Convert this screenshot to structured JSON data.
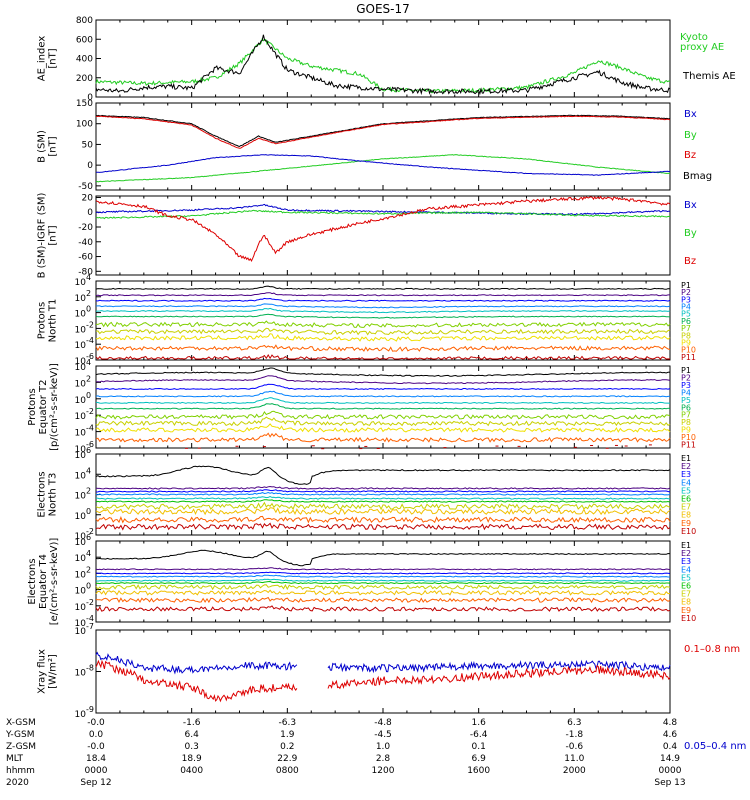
{
  "title": "GOES-17",
  "colors": {
    "black": "#000000",
    "green": "#22cc22",
    "blue": "#0000cc",
    "red": "#dd0000",
    "p_levels": [
      "#000000",
      "#4b0082",
      "#0000ff",
      "#0080ff",
      "#00c0c0",
      "#00b050",
      "#80d000",
      "#c8d000",
      "#f0e000",
      "#ff6000",
      "#c00000"
    ],
    "e_levels": [
      "#000000",
      "#4b0082",
      "#0000ff",
      "#0080ff",
      "#00c0c0",
      "#00c000",
      "#c8d000",
      "#f0c000",
      "#ff6000",
      "#c00000"
    ]
  },
  "panels": [
    {
      "id": "ae",
      "ylabel": [
        "AE_index",
        "[nT]"
      ],
      "ticks": [
        "800",
        "600",
        "400",
        "200",
        "0"
      ],
      "legend": [
        {
          "text": "Kyoto",
          "color": "#22cc22"
        },
        {
          "text": "proxy AE",
          "color": "#22cc22"
        },
        {
          "text": "Themis AE",
          "color": "#000000"
        }
      ]
    },
    {
      "id": "bsm",
      "ylabel": [
        "B (SM)",
        "[nT]"
      ],
      "ticks": [
        "150",
        "100",
        "50",
        "0",
        "-50"
      ],
      "legend": [
        {
          "text": "Bx",
          "color": "#0000cc"
        },
        {
          "text": "By",
          "color": "#22cc22"
        },
        {
          "text": "Bz",
          "color": "#dd0000"
        },
        {
          "text": "Bmag",
          "color": "#000000"
        }
      ]
    },
    {
      "id": "bigrf",
      "ylabel": [
        "B (SM)-IGRF (SM)",
        "[nT]"
      ],
      "ticks": [
        "20",
        "0",
        "-20",
        "-40",
        "-60",
        "-80"
      ],
      "legend": [
        {
          "text": "Bx",
          "color": "#0000cc"
        },
        {
          "text": "By",
          "color": "#22cc22"
        },
        {
          "text": "Bz",
          "color": "#dd0000"
        }
      ]
    },
    {
      "id": "pt1",
      "ylabel": [
        "Protons",
        "North T1"
      ],
      "ticks": [
        {
          "b": "10",
          "e": "4"
        },
        {
          "b": "10",
          "e": "2"
        },
        {
          "b": "10",
          "e": "0"
        },
        {
          "b": "10",
          "e": "-2"
        },
        {
          "b": "10",
          "e": "-4"
        },
        {
          "b": "10",
          "e": "-6"
        }
      ],
      "legend": [
        "P1",
        "P2",
        "P3",
        "P4",
        "P5",
        "P6",
        "P7",
        "P8",
        "P9",
        "P10",
        "P11"
      ]
    },
    {
      "id": "pt2",
      "ylabel": [
        "Protons",
        "Equator T2",
        "[p/(cm²-s-sr-keV)]"
      ],
      "ticks": [
        {
          "b": "10",
          "e": "4"
        },
        {
          "b": "10",
          "e": "2"
        },
        {
          "b": "10",
          "e": "0"
        },
        {
          "b": "10",
          "e": "-2"
        },
        {
          "b": "10",
          "e": "-4"
        },
        {
          "b": "10",
          "e": "-6"
        }
      ],
      "legend": [
        "P1",
        "P2",
        "P3",
        "P4",
        "P5",
        "P6",
        "P7",
        "P8",
        "P9",
        "P10",
        "P11"
      ]
    },
    {
      "id": "et3",
      "ylabel": [
        "Electrons",
        "North T3"
      ],
      "ticks": [
        {
          "b": "10",
          "e": "6"
        },
        {
          "b": "10",
          "e": "4"
        },
        {
          "b": "10",
          "e": "2"
        },
        {
          "b": "10",
          "e": "0"
        },
        {
          "b": "10",
          "e": "-2"
        }
      ],
      "legend": [
        "E1",
        "E2",
        "E3",
        "E4",
        "E5",
        "E6",
        "E7",
        "E8",
        "E9",
        "E10"
      ]
    },
    {
      "id": "et4",
      "ylabel": [
        "Electrons",
        "Equator T4",
        "[e/(cm²-s-sr-keV)]"
      ],
      "ticks": [
        {
          "b": "10",
          "e": "6"
        },
        {
          "b": "10",
          "e": "4"
        },
        {
          "b": "10",
          "e": "2"
        },
        {
          "b": "10",
          "e": "0"
        },
        {
          "b": "10",
          "e": "-2"
        },
        {
          "b": "10",
          "e": "-4"
        }
      ],
      "legend": [
        "E1",
        "E2",
        "E3",
        "E4",
        "E5",
        "E6",
        "E7",
        "E8",
        "E9",
        "E10"
      ]
    },
    {
      "id": "xray",
      "ylabel": [
        "Xray flux",
        "[W/m²]"
      ],
      "ticks": [
        {
          "b": "10",
          "e": "-7"
        },
        {
          "b": "10",
          "e": "-8"
        },
        {
          "b": "10",
          "e": "-9"
        }
      ],
      "legend": [
        {
          "text": "0.1–0.8 nm",
          "color": "#dd0000"
        },
        {
          "text": "0.05–0.4 nm",
          "color": "#0000cc"
        }
      ]
    }
  ],
  "footer": {
    "row_labels": [
      "X-GSM",
      "Y-GSM",
      "Z-GSM",
      "MLT",
      "hhmm",
      "2020"
    ],
    "columns": [
      [
        "-0.0",
        "0.0",
        "-0.0",
        "18.4",
        "0000",
        "Sep 12"
      ],
      [
        "-1.6",
        "6.4",
        "0.3",
        "18.9",
        "0400",
        ""
      ],
      [
        "-6.3",
        "1.9",
        "0.2",
        "22.9",
        "0800",
        ""
      ],
      [
        "-4.8",
        "-4.5",
        "1.0",
        "2.8",
        "1200",
        ""
      ],
      [
        "1.6",
        "-6.4",
        "0.1",
        "6.9",
        "1600",
        ""
      ],
      [
        "6.3",
        "-1.8",
        "-0.6",
        "11.0",
        "2000",
        ""
      ],
      [
        "4.8",
        "4.6",
        "0.4",
        "14.9",
        "0000",
        "Sep 13"
      ]
    ]
  },
  "chart_data": {
    "type": "line",
    "title": "GOES-17",
    "x": {
      "unit": "hhmm",
      "ticks": [
        "0000",
        "0400",
        "0800",
        "1200",
        "1600",
        "2000",
        "0000"
      ],
      "range": [
        "2020-09-12 00:00",
        "2020-09-13 00:00"
      ]
    },
    "series": [
      {
        "panel": "AE_index [nT]",
        "name": "Themis AE",
        "ylim": [
          0,
          800
        ],
        "points": [
          [
            0,
            80
          ],
          [
            1,
            60
          ],
          [
            2,
            100
          ],
          [
            3,
            110
          ],
          [
            4,
            90
          ],
          [
            5,
            300
          ],
          [
            6,
            250
          ],
          [
            7,
            630
          ],
          [
            7.5,
            450
          ],
          [
            8,
            280
          ],
          [
            9,
            200
          ],
          [
            10,
            120
          ],
          [
            12,
            80
          ],
          [
            14,
            60
          ],
          [
            16,
            60
          ],
          [
            18,
            70
          ],
          [
            20,
            200
          ],
          [
            21,
            260
          ],
          [
            22,
            150
          ],
          [
            23,
            90
          ],
          [
            24,
            70
          ]
        ]
      },
      {
        "panel": "AE_index [nT]",
        "name": "Kyoto proxy AE",
        "ylim": [
          0,
          800
        ],
        "points": [
          [
            0,
            160
          ],
          [
            2,
            140
          ],
          [
            4,
            160
          ],
          [
            5,
            200
          ],
          [
            6,
            350
          ],
          [
            7,
            600
          ],
          [
            8,
            400
          ],
          [
            9,
            320
          ],
          [
            10,
            280
          ],
          [
            11,
            240
          ],
          [
            12,
            80
          ],
          [
            14,
            60
          ],
          [
            16,
            70
          ],
          [
            18,
            100
          ],
          [
            20,
            250
          ],
          [
            21,
            380
          ],
          [
            22,
            300
          ],
          [
            23,
            200
          ],
          [
            24,
            150
          ]
        ]
      },
      {
        "panel": "B (SM) [nT]",
        "name": "Bmag",
        "ylim": [
          -60,
          150
        ],
        "points": [
          [
            0,
            120
          ],
          [
            2,
            115
          ],
          [
            4,
            100
          ],
          [
            5,
            70
          ],
          [
            6,
            45
          ],
          [
            6.8,
            70
          ],
          [
            7.5,
            55
          ],
          [
            8,
            60
          ],
          [
            10,
            80
          ],
          [
            12,
            100
          ],
          [
            16,
            115
          ],
          [
            20,
            120
          ],
          [
            22,
            118
          ],
          [
            24,
            112
          ]
        ]
      },
      {
        "panel": "B (SM) [nT]",
        "name": "Bz",
        "ylim": [
          -60,
          150
        ],
        "points": [
          [
            0,
            118
          ],
          [
            2,
            112
          ],
          [
            4,
            97
          ],
          [
            5,
            65
          ],
          [
            6,
            40
          ],
          [
            6.8,
            65
          ],
          [
            7.5,
            52
          ],
          [
            8,
            57
          ],
          [
            10,
            78
          ],
          [
            12,
            98
          ],
          [
            16,
            113
          ],
          [
            20,
            118
          ],
          [
            22,
            116
          ],
          [
            24,
            110
          ]
        ]
      },
      {
        "panel": "B (SM) [nT]",
        "name": "Bx",
        "ylim": [
          -60,
          150
        ],
        "points": [
          [
            0,
            -18
          ],
          [
            3,
            0
          ],
          [
            5,
            18
          ],
          [
            7,
            25
          ],
          [
            9,
            22
          ],
          [
            11,
            10
          ],
          [
            14,
            -5
          ],
          [
            18,
            -20
          ],
          [
            21,
            -24
          ],
          [
            24,
            -15
          ]
        ]
      },
      {
        "panel": "B (SM) [nT]",
        "name": "By",
        "ylim": [
          -60,
          150
        ],
        "points": [
          [
            0,
            -40
          ],
          [
            4,
            -30
          ],
          [
            8,
            -8
          ],
          [
            12,
            15
          ],
          [
            15,
            25
          ],
          [
            18,
            15
          ],
          [
            21,
            -5
          ],
          [
            24,
            -20
          ]
        ]
      },
      {
        "panel": "B (SM)-IGRF (SM) [nT]",
        "name": "Bz",
        "ylim": [
          -80,
          20
        ],
        "points": [
          [
            0,
            15
          ],
          [
            2,
            8
          ],
          [
            3,
            -5
          ],
          [
            4,
            -10
          ],
          [
            5,
            -30
          ],
          [
            6,
            -60
          ],
          [
            6.5,
            -65
          ],
          [
            7,
            -30
          ],
          [
            7.5,
            -55
          ],
          [
            8,
            -40
          ],
          [
            9,
            -30
          ],
          [
            11,
            -15
          ],
          [
            14,
            5
          ],
          [
            18,
            15
          ],
          [
            21,
            20
          ],
          [
            23,
            15
          ],
          [
            24,
            10
          ]
        ]
      },
      {
        "panel": "B (SM)-IGRF (SM) [nT]",
        "name": "Bx",
        "ylim": [
          -80,
          20
        ],
        "points": [
          [
            0,
            0
          ],
          [
            4,
            3
          ],
          [
            6,
            6
          ],
          [
            7,
            10
          ],
          [
            8,
            3
          ],
          [
            12,
            1
          ],
          [
            16,
            -1
          ],
          [
            20,
            -3
          ],
          [
            24,
            2
          ]
        ]
      },
      {
        "panel": "B (SM)-IGRF (SM) [nT]",
        "name": "By",
        "ylim": [
          -80,
          20
        ],
        "points": [
          [
            0,
            -8
          ],
          [
            4,
            -5
          ],
          [
            6.5,
            2
          ],
          [
            8,
            0
          ],
          [
            12,
            -2
          ],
          [
            16,
            0
          ],
          [
            20,
            -4
          ],
          [
            24,
            -6
          ]
        ]
      },
      {
        "panel": "Xray flux [W/m²]",
        "name": "0.1–0.8 nm",
        "scale": "log",
        "ylim": [
          1e-09,
          1e-07
        ],
        "points": [
          [
            0,
            1.6e-08
          ],
          [
            2,
            6e-09
          ],
          [
            4,
            4e-09
          ],
          [
            5,
            2e-09
          ],
          [
            6,
            3e-09
          ],
          [
            7,
            4e-09
          ],
          [
            9,
            4e-09
          ],
          [
            12,
            6e-09
          ],
          [
            15,
            7e-09
          ],
          [
            18,
            9e-09
          ],
          [
            21,
            1.1e-08
          ],
          [
            24,
            8e-09
          ]
        ]
      },
      {
        "panel": "Xray flux [W/m²]",
        "name": "0.05–0.4 nm",
        "scale": "log",
        "ylim": [
          1e-09,
          1e-07
        ],
        "points": [
          [
            0,
            2.5e-08
          ],
          [
            2,
            1.2e-08
          ],
          [
            4,
            1.1e-08
          ],
          [
            6,
            1.4e-08
          ],
          [
            9,
            1.3e-08
          ],
          [
            12,
            1.2e-08
          ],
          [
            15,
            1.3e-08
          ],
          [
            18,
            1.4e-08
          ],
          [
            21,
            1.5e-08
          ],
          [
            24,
            1.2e-08
          ]
        ]
      }
    ],
    "channels_log": {
      "protons_t1": {
        "ylim_exp": [
          -6,
          4
        ],
        "level_exp": [
          3.0,
          2.2,
          1.5,
          0.8,
          0.2,
          -0.5,
          -1.5,
          -2.4,
          -3.2,
          -4.5,
          -5.8
        ]
      },
      "protons_t2": {
        "ylim_exp": [
          -6,
          4
        ],
        "level_exp": [
          3.0,
          2.1,
          1.2,
          0.3,
          -0.5,
          -1.2,
          -2.2,
          -3.0,
          -3.8,
          -5.0,
          -6.2
        ]
      },
      "electrons_t3": {
        "ylim_exp": [
          -2,
          6
        ],
        "level_exp": [
          3.8,
          2.6,
          2.3,
          2.0,
          1.6,
          1.3,
          0.8,
          0.3,
          -0.5,
          -1.2
        ]
      },
      "electrons_t4": {
        "ylim_exp": [
          -4,
          6
        ],
        "level_exp": [
          3.8,
          2.5,
          2.0,
          1.6,
          1.1,
          0.8,
          0.3,
          -0.4,
          -1.3,
          -2.4
        ]
      }
    }
  }
}
